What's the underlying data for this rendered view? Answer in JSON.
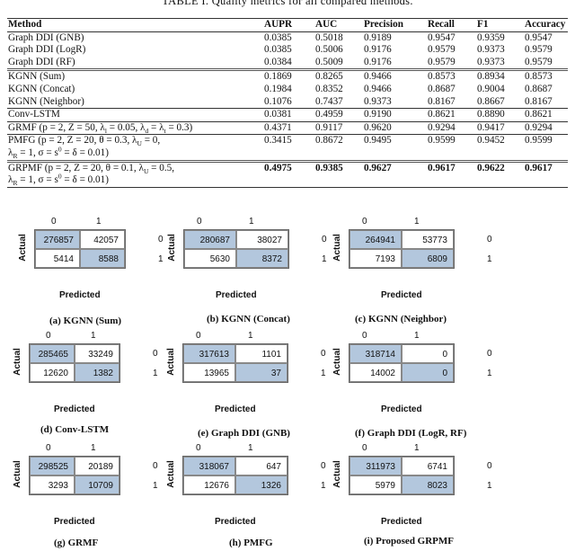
{
  "table": {
    "title": "TABLE I.  Quality metrics for all compared methods.",
    "headers": [
      "Method",
      "AUPR",
      "AUC",
      "Precision",
      "Recall",
      "F1",
      "Accuracy"
    ],
    "rows": [
      {
        "method": [
          [
            "Graph DDI (GNB)"
          ]
        ],
        "values": [
          "0.0385",
          "0.5018",
          "0.9189",
          "0.9547",
          "0.9359",
          "0.9547"
        ]
      },
      {
        "method": [
          [
            "Graph DDI (LogR)"
          ]
        ],
        "values": [
          "0.0385",
          "0.5006",
          "0.9176",
          "0.9579",
          "0.9373",
          "0.9579"
        ]
      },
      {
        "method": [
          [
            "Graph DDI (RF)"
          ]
        ],
        "values": [
          "0.0384",
          "0.5009",
          "0.9176",
          "0.9579",
          "0.9373",
          "0.9579"
        ]
      },
      {
        "method": [
          [
            "KGNN (Sum)"
          ]
        ],
        "values": [
          "0.1869",
          "0.8265",
          "0.9466",
          "0.8573",
          "0.8934",
          "0.8573"
        ]
      },
      {
        "method": [
          [
            "KGNN (Concat)"
          ]
        ],
        "values": [
          "0.1984",
          "0.8352",
          "0.9466",
          "0.8687",
          "0.9004",
          "0.8687"
        ]
      },
      {
        "method": [
          [
            "KGNN (Neighbor)"
          ]
        ],
        "values": [
          "0.1076",
          "0.7437",
          "0.9373",
          "0.8167",
          "0.8667",
          "0.8167"
        ]
      },
      {
        "method": [
          [
            "Conv-LSTM"
          ]
        ],
        "values": [
          "0.0381",
          "0.4959",
          "0.9190",
          "0.8621",
          "0.8890",
          "0.8621"
        ]
      },
      {
        "method": [
          [
            "GRMF (p = 2, Z = 50, λ",
            "_l",
            " = 0.05, λ",
            "_d",
            " = λ",
            "_t",
            " = 0.3)"
          ]
        ],
        "values": [
          "0.4371",
          "0.9117",
          "0.9620",
          "0.9294",
          "0.9417",
          "0.9294"
        ]
      },
      {
        "method": [
          [
            "PMFG (p = 2, Z = 20, θ = 0.3, λ",
            "_U",
            " = 0,"
          ],
          [
            "λ",
            "_R",
            " = 1, σ = s",
            "^0",
            " = δ = 0.01)"
          ]
        ],
        "values": [
          "0.3415",
          "0.8672",
          "0.9495",
          "0.9599",
          "0.9452",
          "0.9599"
        ]
      },
      {
        "method": [
          [
            "GRPMF (p = 2, Z = 20, θ = 0.1, λ",
            "_U",
            " = 0.5,"
          ],
          [
            "λ",
            "_R",
            " = 1, σ = s",
            "^0",
            " = δ = 0.01)"
          ]
        ],
        "values": [
          "0.4975",
          "0.9385",
          "0.9627",
          "0.9617",
          "0.9622",
          "0.9617"
        ],
        "best": true
      }
    ]
  },
  "confusion_matrices": {
    "predicted_label": "Predicted",
    "actual_label": "Actual",
    "class_labels": [
      "0",
      "1"
    ],
    "diagonal_color": "#b3c7dd",
    "panels": [
      {
        "caption": "(a) KGNN (Sum)",
        "cells": [
          "276857",
          "42057",
          "5414",
          "8588"
        ]
      },
      {
        "caption": "(b) KGNN (Concat)",
        "cells": [
          "280687",
          "38027",
          "5630",
          "8372"
        ]
      },
      {
        "caption": "(c) KGNN (Neighbor)",
        "cells": [
          "264941",
          "53773",
          "7193",
          "6809"
        ]
      },
      {
        "caption": "(d) Conv-LSTM",
        "cells": [
          "285465",
          "33249",
          "12620",
          "1382"
        ]
      },
      {
        "caption": "(e) Graph DDI (GNB)",
        "cells": [
          "317613",
          "1101",
          "13965",
          "37"
        ]
      },
      {
        "caption": "(f) Graph DDI (LogR, RF)",
        "cells": [
          "318714",
          "0",
          "14002",
          "0"
        ]
      },
      {
        "caption": "(g) GRMF",
        "cells": [
          "298525",
          "20189",
          "3293",
          "10709"
        ]
      },
      {
        "caption": "(h) PMFG",
        "cells": [
          "318067",
          "647",
          "12676",
          "1326"
        ]
      },
      {
        "caption": "(i) Proposed GRPMF",
        "cells": [
          "311973",
          "6741",
          "5979",
          "8023"
        ]
      }
    ]
  }
}
